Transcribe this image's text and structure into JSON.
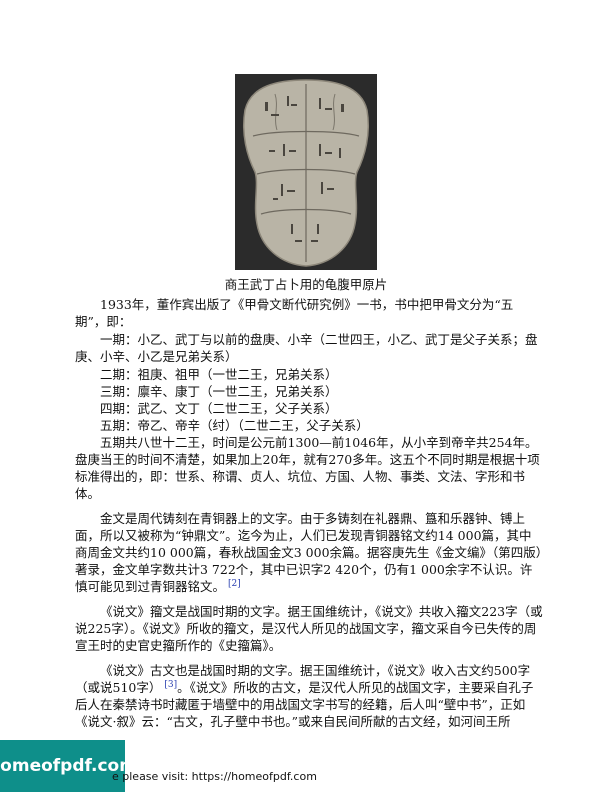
{
  "figure": {
    "caption": "商王武丁占卜用的龟腹甲原片"
  },
  "paragraphs": [
    {
      "text": "1933年，董作宾出版了《甲骨文断代研究例》一书，书中把甲骨文分为“五期”，即："
    },
    {
      "text": "一期：小乙、武丁与以前的盘庚、小辛（二世四王，小乙、武丁是父子关系；盘庚、小辛、小乙是兄弟关系）"
    }
  ],
  "periods": [
    "二期：祖庚、祖甲（一世二王，兄弟关系）",
    "三期：廪辛、康丁（一世二王，兄弟关系）",
    "四期：武乙、文丁（二世二王，父子关系）",
    "五期：帝乙、帝辛（纣）（二世二王，父子关系）"
  ],
  "body": {
    "p_wuqi": "五期共八世十二王，时间是公元前1300—前1046年，从小辛到帝辛共254年。盘庚当王的时间不清楚，如果加上20年，就有270多年。这五个不同时期是根据十项标准得出的，即：世系、称谓、贞人、坑位、方国、人物、事类、文法、字形和书体。",
    "p_jinwen": "金文是周代铸刻在青铜器上的文字。由于多铸刻在礼器鼎、簋和乐器钟、镈上面，所以又被称为“钟鼎文”。迄今为止，人们已发现青铜器铭文约14 000篇，其中商周金文共约10  000篇，春秋战国金文3  000余篇。据容庚先生《金文编》（第四版）著录，金文单字数共计3  722个，其中已识字2  420个，仍有1  000余字不认识。许慎可能见到过青铜器铭文。",
    "ref2": "[2]",
    "p_zhouwen": "《说文》籀文是战国时期的文字。据王国维统计，《说文》共收入籀文223字（或说225字）。《说文》所收的籀文，是汉代人所见的战国文字，籀文采自今已失传的周宣王时的史官史籀所作的《史籀篇》。",
    "p_guwen_a": "《说文》古文也是战国时期的文字。据王国维统计，《说文》收入古文约500字（或说510字）",
    "ref3": "[3]",
    "p_guwen_b": "。《说文》所收的古文，是汉代人所见的战国文字，主要采自孔子后人在秦禁诗书时藏匿于墙壁中的用战国文字书写的经籍，后人叫“壁中书”，正如《说文·叙》云：“古文，孔子壁中书也。”或来自民间所献的古文经，如河间王所"
  },
  "footer": {
    "badge": "homeofpdf.com",
    "text": "e please visit: https://homeofpdf.com"
  },
  "colors": {
    "badge_bg": "#0e8f8a",
    "ref_link": "#2a3fb0"
  }
}
